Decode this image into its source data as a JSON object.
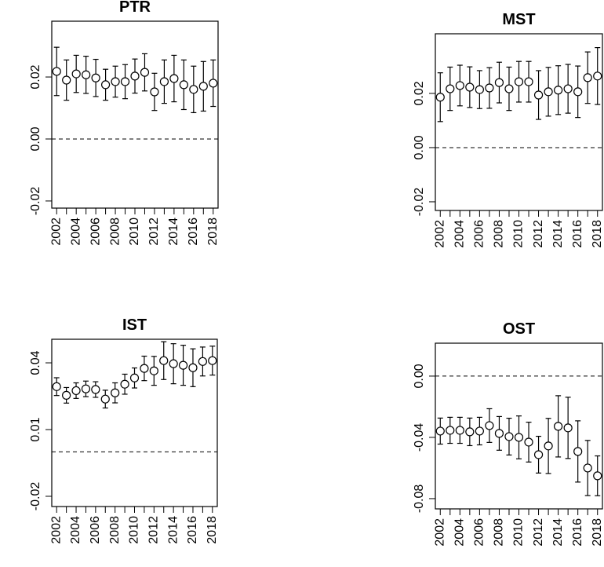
{
  "chart_data": [
    {
      "type": "errorbar",
      "title": "PTR",
      "categories": [
        "2002",
        null,
        "2004",
        null,
        "2006",
        null,
        "2008",
        null,
        "2010",
        null,
        "2012",
        null,
        "2014",
        null,
        "2016",
        null,
        "2018"
      ],
      "values": [
        0.0218,
        0.019,
        0.021,
        0.0207,
        0.0197,
        0.0175,
        0.0185,
        0.0185,
        0.0203,
        0.0215,
        0.0152,
        0.0185,
        0.0195,
        0.0175,
        0.016,
        0.017,
        0.018
      ],
      "errors": [
        0.0078,
        0.0065,
        0.006,
        0.006,
        0.006,
        0.005,
        0.005,
        0.0055,
        0.0055,
        0.006,
        0.006,
        0.007,
        0.0075,
        0.008,
        0.0075,
        0.008,
        0.0075
      ],
      "ylim": [
        -0.0223,
        0.038
      ],
      "yticks": [
        {
          "value": -0.02,
          "label": "-0.02"
        },
        {
          "value": 0,
          "label": "0.00"
        },
        {
          "value": 0.02,
          "label": "0.02"
        }
      ],
      "hline": 0
    },
    {
      "type": "errorbar",
      "title": "MST",
      "categories": [
        "2002",
        null,
        "2004",
        null,
        "2006",
        null,
        "2008",
        null,
        "2010",
        null,
        "2012",
        null,
        "2014",
        null,
        "2016",
        null,
        "2018"
      ],
      "values": [
        0.0186,
        0.0217,
        0.0229,
        0.0223,
        0.0214,
        0.022,
        0.024,
        0.0217,
        0.0243,
        0.0243,
        0.0194,
        0.0206,
        0.0212,
        0.0217,
        0.0206,
        0.0258,
        0.0264
      ],
      "errors": [
        0.009,
        0.008,
        0.0075,
        0.0075,
        0.007,
        0.0075,
        0.0075,
        0.008,
        0.0075,
        0.0075,
        0.009,
        0.009,
        0.009,
        0.009,
        0.0095,
        0.0095,
        0.0105
      ],
      "ylim": [
        -0.0232,
        0.042
      ],
      "yticks": [
        {
          "value": -0.02,
          "label": "-0.02"
        },
        {
          "value": 0,
          "label": "0.00"
        },
        {
          "value": 0.02,
          "label": "0.02"
        }
      ],
      "hline": 0
    },
    {
      "type": "errorbar",
      "title": "IST",
      "categories": [
        "2002",
        null,
        "2004",
        null,
        "2006",
        null,
        "2008",
        null,
        "2010",
        null,
        "2012",
        null,
        "2014",
        null,
        "2016",
        null,
        "2018"
      ],
      "values": [
        0.0293,
        0.0254,
        0.0275,
        0.0283,
        0.028,
        0.0237,
        0.0265,
        0.0304,
        0.0332,
        0.0375,
        0.0364,
        0.041,
        0.0396,
        0.0389,
        0.0378,
        0.0406,
        0.041
      ],
      "errors": [
        0.004,
        0.0035,
        0.0035,
        0.0035,
        0.0035,
        0.004,
        0.0045,
        0.0045,
        0.0045,
        0.0055,
        0.0065,
        0.0085,
        0.009,
        0.009,
        0.0085,
        0.0065,
        0.0065
      ],
      "ylim": [
        -0.0246,
        0.0506
      ],
      "yticks": [
        {
          "value": -0.02,
          "label": "-0.02"
        },
        {
          "value": 0.01,
          "label": "0.01"
        },
        {
          "value": 0.04,
          "label": "0.04"
        }
      ],
      "hline": 0
    },
    {
      "type": "errorbar",
      "title": "OST",
      "categories": [
        "2002",
        null,
        "2004",
        null,
        "2006",
        null,
        "2008",
        null,
        "2010",
        null,
        "2012",
        null,
        "2014",
        null,
        "2016",
        null,
        "2018"
      ],
      "values": [
        -0.0359,
        -0.0354,
        -0.0354,
        -0.0364,
        -0.0359,
        -0.0323,
        -0.0374,
        -0.0395,
        -0.04,
        -0.0431,
        -0.0513,
        -0.0456,
        -0.0328,
        -0.0338,
        -0.0492,
        -0.06,
        -0.0651
      ],
      "errors": [
        0.0085,
        0.0085,
        0.0085,
        0.009,
        0.009,
        0.011,
        0.011,
        0.012,
        0.014,
        0.013,
        0.012,
        0.018,
        0.02,
        0.02,
        0.02,
        0.018,
        0.013
      ],
      "ylim": [
        -0.0867,
        0.0215
      ],
      "yticks": [
        {
          "value": -0.08,
          "label": "-0.08"
        },
        {
          "value": -0.04,
          "label": "-0.04"
        },
        {
          "value": 0,
          "label": "0.00"
        }
      ],
      "hline": 0
    }
  ]
}
